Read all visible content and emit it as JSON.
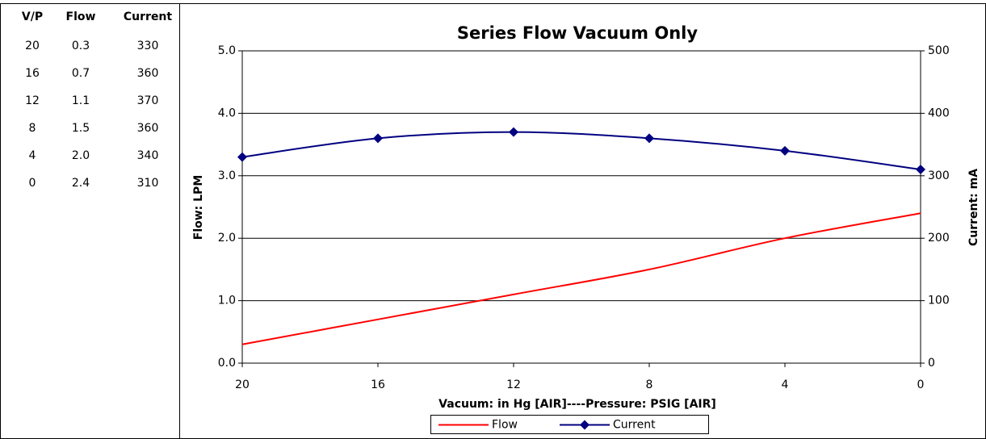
{
  "table": {
    "header": [
      "V/P",
      "Flow",
      "Current"
    ],
    "rows": [
      [
        "20",
        "0.3",
        "330"
      ],
      [
        "16",
        "0.7",
        "360"
      ],
      [
        "12",
        "1.1",
        "370"
      ],
      [
        "8",
        "1.5",
        "360"
      ],
      [
        "4",
        "2.0",
        "340"
      ],
      [
        "0",
        "2.4",
        "310"
      ]
    ]
  },
  "chart_data": {
    "type": "line",
    "title": "Series Flow Vacuum Only",
    "x_label": "Vacuum: in Hg [AIR]----Pressure: PSIG [AIR]",
    "y_label": "Flow: LPM",
    "y2_label": "Current: mA",
    "x": [
      20,
      16,
      12,
      8,
      4,
      0
    ],
    "xlim": [
      20,
      0
    ],
    "xticks": [
      20,
      16,
      12,
      8,
      4,
      0
    ],
    "ylim": [
      0,
      5
    ],
    "yticks": [
      {
        "value": 0,
        "label": "0.0"
      },
      {
        "value": 1,
        "label": "1.0"
      },
      {
        "value": 2,
        "label": "2.0"
      },
      {
        "value": 3,
        "label": "3.0"
      },
      {
        "value": 4,
        "label": "4.0"
      },
      {
        "value": 5,
        "label": "5.0"
      }
    ],
    "y2lim": [
      0,
      500
    ],
    "y2ticks": [
      0,
      100,
      200,
      300,
      400,
      500
    ],
    "grid": true,
    "legend": "bottom",
    "series": [
      {
        "name": "Flow",
        "color": "#ff0000",
        "axis": "y",
        "values": [
          0.3,
          0.7,
          1.1,
          1.5,
          2.0,
          2.4
        ]
      },
      {
        "name": "Current",
        "color": "#000080",
        "axis": "y2",
        "marker": "diamond",
        "values": [
          330,
          360,
          370,
          360,
          340,
          310
        ]
      }
    ]
  }
}
